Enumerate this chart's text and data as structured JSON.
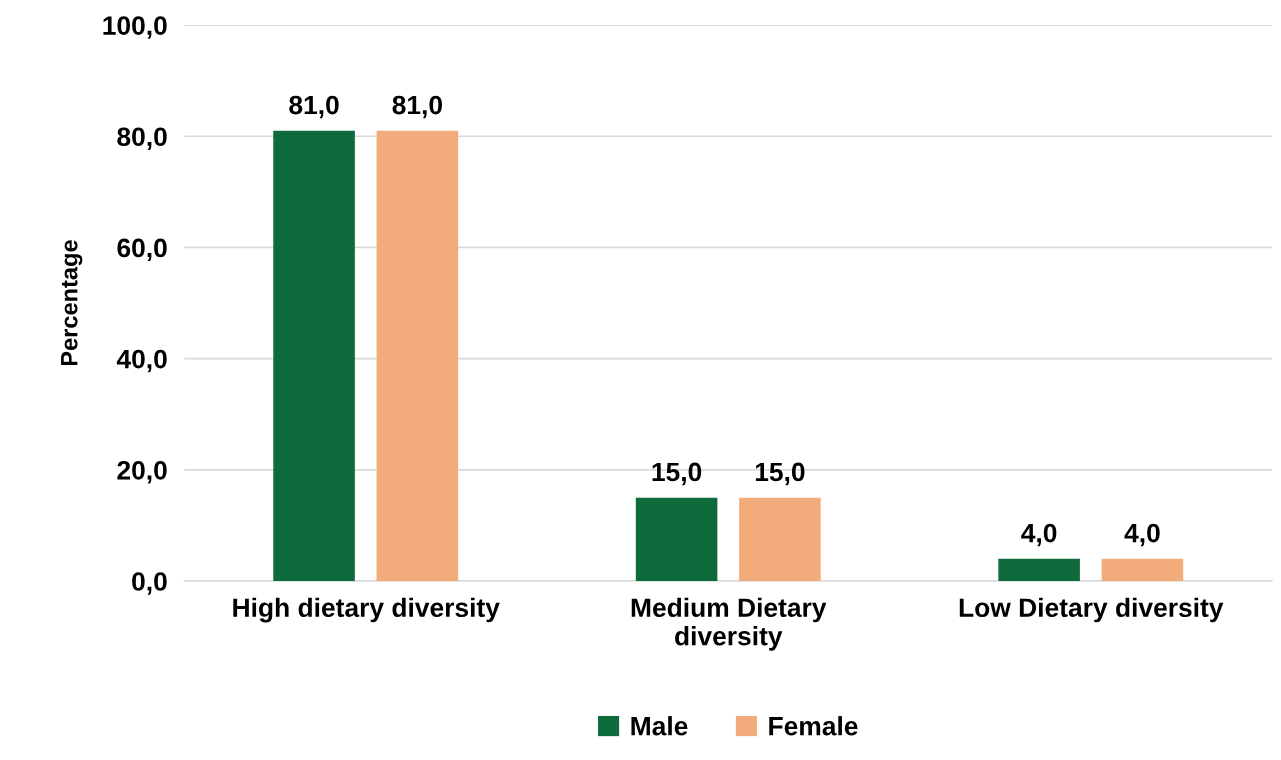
{
  "chart_data": {
    "type": "bar",
    "ylabel": "Percentage",
    "categories": [
      "High dietary diversity",
      "Medium Dietary\ndiversity",
      "Low Dietary diversity"
    ],
    "series": [
      {
        "name": "Male",
        "color": "#0e6b3b",
        "values": [
          81.0,
          15.0,
          4.0
        ],
        "value_labels": [
          "81,0",
          "15,0",
          "4,0"
        ]
      },
      {
        "name": "Female",
        "color": "#f2ac7b",
        "values": [
          81.0,
          15.0,
          4.0
        ],
        "value_labels": [
          "81,0",
          "15,0",
          "4,0"
        ]
      }
    ],
    "ylim": [
      0,
      100
    ],
    "yticks": [
      {
        "value": 0,
        "label": "0,0"
      },
      {
        "value": 20,
        "label": "20,0"
      },
      {
        "value": 40,
        "label": "40,0"
      },
      {
        "value": 60,
        "label": "60,0"
      },
      {
        "value": 80,
        "label": "80,0"
      },
      {
        "value": 100,
        "label": "100,0"
      }
    ],
    "grid": "y",
    "legend": "bottom"
  }
}
